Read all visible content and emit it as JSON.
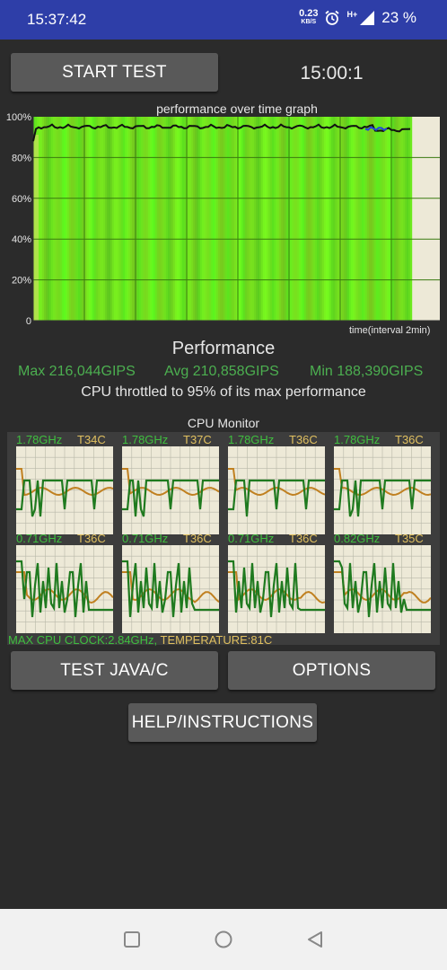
{
  "status": {
    "time": "15:37:42",
    "net_speed": "0.23",
    "net_unit": "KB/S",
    "signal": "H+",
    "battery": "23 %"
  },
  "controls": {
    "start_label": "START TEST",
    "timer": "15:00:1",
    "java_label": "TEST JAVA/C",
    "options_label": "OPTIONS",
    "help_label": "HELP/INSTRUCTIONS"
  },
  "graph": {
    "title": "performance over time graph",
    "x_label": "time(interval 2min)",
    "y_ticks": [
      "100%",
      "80%",
      "60%",
      "40%",
      "20%",
      "0"
    ]
  },
  "performance": {
    "heading": "Performance",
    "max": "Max 216,044GIPS",
    "avg": "Avg 210,858GIPS",
    "min": "Min 188,390GIPS",
    "throttle": "CPU throttled to 95% of its max performance"
  },
  "cpu_monitor": {
    "title": "CPU Monitor",
    "cores": [
      {
        "freq": "1.78GHz",
        "temp": "T34C"
      },
      {
        "freq": "1.78GHz",
        "temp": "T37C"
      },
      {
        "freq": "1.78GHz",
        "temp": "T36C"
      },
      {
        "freq": "1.78GHz",
        "temp": "T36C"
      },
      {
        "freq": "0.71GHz",
        "temp": "T36C"
      },
      {
        "freq": "0.71GHz",
        "temp": "T36C"
      },
      {
        "freq": "0.71GHz",
        "temp": "T36C"
      },
      {
        "freq": "0.82GHz",
        "temp": "T35C"
      }
    ],
    "max_clock": "MAX CPU CLOCK:2.84GHz,",
    "temperature": " TEMPERATURE:81C"
  },
  "colors": {
    "bar_green": "#66ee22",
    "freq_green": "#1f7a1f",
    "temp_orange": "#c08020"
  }
}
